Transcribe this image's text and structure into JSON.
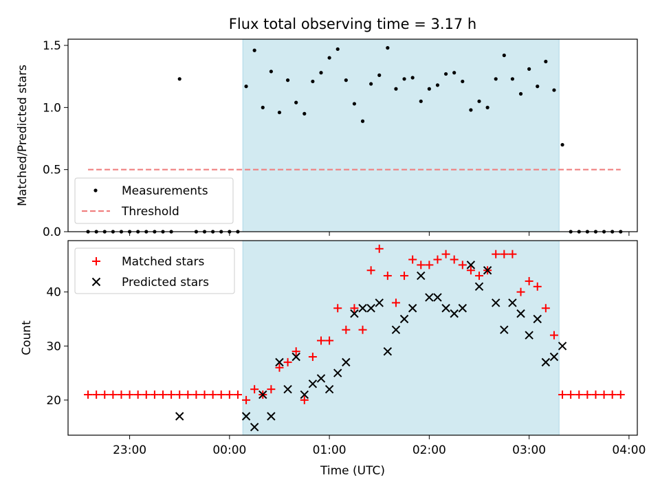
{
  "chart_data": [
    {
      "type": "scatter",
      "title": "Flux total observing time = 3.17 h",
      "xlabel": "",
      "ylabel": "Matched/Predicted stars",
      "ylim": [
        0,
        1.55
      ],
      "yticks": [
        "0.0",
        "0.5",
        "1.0",
        "1.5"
      ],
      "legend": "lower-left",
      "shaded_interval": [
        "00:08",
        "03:18"
      ],
      "shade_color": "#add8e6",
      "series": [
        {
          "name": "Measurements",
          "marker": "dot",
          "color": "#000000",
          "points": [
            [
              "22:35",
              0
            ],
            [
              "22:40",
              0
            ],
            [
              "22:45",
              0
            ],
            [
              "22:50",
              0
            ],
            [
              "22:55",
              0
            ],
            [
              "23:00",
              0
            ],
            [
              "23:05",
              0
            ],
            [
              "23:10",
              0
            ],
            [
              "23:15",
              0
            ],
            [
              "23:20",
              0
            ],
            [
              "23:25",
              0
            ],
            [
              "23:30",
              1.23
            ],
            [
              "23:40",
              0
            ],
            [
              "23:45",
              0
            ],
            [
              "23:50",
              0
            ],
            [
              "23:55",
              0
            ],
            [
              "00:00",
              0
            ],
            [
              "00:05",
              0
            ],
            [
              "00:10",
              1.17
            ],
            [
              "00:15",
              1.46
            ],
            [
              "00:20",
              1.0
            ],
            [
              "00:25",
              1.29
            ],
            [
              "00:30",
              0.96
            ],
            [
              "00:35",
              1.22
            ],
            [
              "00:40",
              1.04
            ],
            [
              "00:45",
              0.95
            ],
            [
              "00:50",
              1.21
            ],
            [
              "00:55",
              1.28
            ],
            [
              "01:00",
              1.4
            ],
            [
              "01:05",
              1.47
            ],
            [
              "01:10",
              1.22
            ],
            [
              "01:15",
              1.03
            ],
            [
              "01:20",
              0.89
            ],
            [
              "01:25",
              1.19
            ],
            [
              "01:30",
              1.26
            ],
            [
              "01:35",
              1.48
            ],
            [
              "01:40",
              1.15
            ],
            [
              "01:45",
              1.23
            ],
            [
              "01:50",
              1.24
            ],
            [
              "01:55",
              1.05
            ],
            [
              "02:00",
              1.15
            ],
            [
              "02:05",
              1.18
            ],
            [
              "02:10",
              1.27
            ],
            [
              "02:15",
              1.28
            ],
            [
              "02:20",
              1.21
            ],
            [
              "02:25",
              0.98
            ],
            [
              "02:30",
              1.05
            ],
            [
              "02:35",
              1.0
            ],
            [
              "02:40",
              1.23
            ],
            [
              "02:45",
              1.42
            ],
            [
              "02:50",
              1.23
            ],
            [
              "02:55",
              1.11
            ],
            [
              "03:00",
              1.31
            ],
            [
              "03:05",
              1.17
            ],
            [
              "03:10",
              1.37
            ],
            [
              "03:15",
              1.14
            ],
            [
              "03:20",
              0.7
            ],
            [
              "03:25",
              0
            ],
            [
              "03:30",
              0
            ],
            [
              "03:35",
              0
            ],
            [
              "03:40",
              0
            ],
            [
              "03:45",
              0
            ],
            [
              "03:50",
              0
            ],
            [
              "03:55",
              0
            ]
          ]
        },
        {
          "name": "Threshold",
          "marker": "dashed-line",
          "color": "#f08080",
          "points": [
            [
              "22:35",
              0.5
            ],
            [
              "03:55",
              0.5
            ]
          ]
        }
      ]
    },
    {
      "type": "scatter",
      "title": "",
      "xlabel": "Time (UTC)",
      "ylabel": "Count",
      "xlim": [
        "22:23",
        "04:05"
      ],
      "xticks": [
        "23:00",
        "00:00",
        "01:00",
        "02:00",
        "03:00",
        "04:00"
      ],
      "ylim": [
        13.5,
        49.5
      ],
      "yticks": [
        "20",
        "30",
        "40"
      ],
      "legend": "upper-left",
      "shaded_interval": [
        "00:08",
        "03:18"
      ],
      "shade_color": "#add8e6",
      "series": [
        {
          "name": "Matched stars",
          "marker": "plus",
          "color": "#ff0000",
          "points": [
            [
              "22:35",
              21
            ],
            [
              "22:40",
              21
            ],
            [
              "22:45",
              21
            ],
            [
              "22:50",
              21
            ],
            [
              "22:55",
              21
            ],
            [
              "23:00",
              21
            ],
            [
              "23:05",
              21
            ],
            [
              "23:10",
              21
            ],
            [
              "23:15",
              21
            ],
            [
              "23:20",
              21
            ],
            [
              "23:25",
              21
            ],
            [
              "23:30",
              21
            ],
            [
              "23:35",
              21
            ],
            [
              "23:40",
              21
            ],
            [
              "23:45",
              21
            ],
            [
              "23:50",
              21
            ],
            [
              "23:55",
              21
            ],
            [
              "00:00",
              21
            ],
            [
              "00:05",
              21
            ],
            [
              "00:10",
              20
            ],
            [
              "00:15",
              22
            ],
            [
              "00:20",
              21
            ],
            [
              "00:25",
              22
            ],
            [
              "00:30",
              26
            ],
            [
              "00:35",
              27
            ],
            [
              "00:40",
              29
            ],
            [
              "00:45",
              20
            ],
            [
              "00:50",
              28
            ],
            [
              "00:55",
              31
            ],
            [
              "01:00",
              31
            ],
            [
              "01:05",
              37
            ],
            [
              "01:10",
              33
            ],
            [
              "01:15",
              37
            ],
            [
              "01:20",
              33
            ],
            [
              "01:25",
              44
            ],
            [
              "01:30",
              48
            ],
            [
              "01:35",
              43
            ],
            [
              "01:40",
              38
            ],
            [
              "01:45",
              43
            ],
            [
              "01:50",
              46
            ],
            [
              "01:55",
              45
            ],
            [
              "02:00",
              45
            ],
            [
              "02:05",
              46
            ],
            [
              "02:10",
              47
            ],
            [
              "02:15",
              46
            ],
            [
              "02:20",
              45
            ],
            [
              "02:25",
              44
            ],
            [
              "02:30",
              43
            ],
            [
              "02:35",
              44
            ],
            [
              "02:40",
              47
            ],
            [
              "02:45",
              47
            ],
            [
              "02:50",
              47
            ],
            [
              "02:55",
              40
            ],
            [
              "03:00",
              42
            ],
            [
              "03:05",
              41
            ],
            [
              "03:10",
              37
            ],
            [
              "03:15",
              32
            ],
            [
              "03:20",
              21
            ],
            [
              "03:25",
              21
            ],
            [
              "03:30",
              21
            ],
            [
              "03:35",
              21
            ],
            [
              "03:40",
              21
            ],
            [
              "03:45",
              21
            ],
            [
              "03:50",
              21
            ],
            [
              "03:55",
              21
            ]
          ]
        },
        {
          "name": "Predicted stars",
          "marker": "x",
          "color": "#000000",
          "points": [
            [
              "23:30",
              17
            ],
            [
              "00:10",
              17
            ],
            [
              "00:15",
              15
            ],
            [
              "00:20",
              21
            ],
            [
              "00:25",
              17
            ],
            [
              "00:30",
              27
            ],
            [
              "00:35",
              22
            ],
            [
              "00:40",
              28
            ],
            [
              "00:45",
              21
            ],
            [
              "00:50",
              23
            ],
            [
              "00:55",
              24
            ],
            [
              "01:00",
              22
            ],
            [
              "01:05",
              25
            ],
            [
              "01:10",
              27
            ],
            [
              "01:15",
              36
            ],
            [
              "01:20",
              37
            ],
            [
              "01:25",
              37
            ],
            [
              "01:30",
              38
            ],
            [
              "01:35",
              29
            ],
            [
              "01:40",
              33
            ],
            [
              "01:45",
              35
            ],
            [
              "01:50",
              37
            ],
            [
              "01:55",
              43
            ],
            [
              "02:00",
              39
            ],
            [
              "02:05",
              39
            ],
            [
              "02:10",
              37
            ],
            [
              "02:15",
              36
            ],
            [
              "02:20",
              37
            ],
            [
              "02:25",
              45
            ],
            [
              "02:30",
              41
            ],
            [
              "02:35",
              44
            ],
            [
              "02:40",
              38
            ],
            [
              "02:45",
              33
            ],
            [
              "02:50",
              38
            ],
            [
              "02:55",
              36
            ],
            [
              "03:00",
              32
            ],
            [
              "03:05",
              35
            ],
            [
              "03:10",
              27
            ],
            [
              "03:15",
              28
            ],
            [
              "03:20",
              30
            ]
          ]
        }
      ]
    }
  ]
}
